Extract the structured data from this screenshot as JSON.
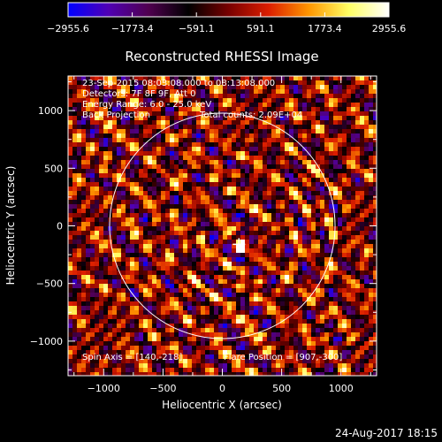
{
  "chart_data": {
    "type": "heatmap",
    "title": "Reconstructed RHESSI Image",
    "xlabel": "Heliocentric X (arcsec)",
    "ylabel": "Heliocentric Y (arcsec)",
    "xlim": [
      -1300,
      1300
    ],
    "ylim": [
      -1300,
      1300
    ],
    "x_ticks": [
      -1000,
      -500,
      0,
      500,
      1000
    ],
    "x_tick_labels": [
      "−1000",
      "−500",
      "0",
      "500",
      "1000"
    ],
    "y_ticks": [
      -1000,
      -500,
      0,
      500,
      1000
    ],
    "y_tick_labels": [
      "−1000",
      "−500",
      "0",
      "500",
      "1000"
    ],
    "colorbar": {
      "range": [
        -2955.6,
        2955.6
      ],
      "ticks": [
        -2955.6,
        -1773.4,
        -591.1,
        591.1,
        1773.4,
        2955.6
      ],
      "tick_labels": [
        "−2955.6",
        "−1773.4",
        "−591.1",
        "591.1",
        "1773.4",
        "2955.6"
      ],
      "colors": [
        "#0000ff",
        "#5000b4",
        "#500050",
        "#000000",
        "#780000",
        "#dc1e00",
        "#ff9600",
        "#ffff64",
        "#ffffff"
      ]
    },
    "solar_limb_radius": 950,
    "marker": {
      "x": 140,
      "y": -160,
      "symbol": "+"
    },
    "annotations": {
      "time_range": "23-Sep-2015 08:03:08.000 to 08:13:08.000",
      "detectors": "Detectors: 7F 8F 9F, Att 0",
      "energy_range": "Energy Range: 6.0 - 25.0 keV",
      "method": "Back Projection",
      "total_counts": "Total counts: 2.09E+04",
      "spin_axis": "Spin Axis = [140,-218]",
      "flare_position": "Flare Position = [907,-300]"
    },
    "grid": false
  },
  "footer": {
    "date": "24-Aug-2017 18:15"
  }
}
